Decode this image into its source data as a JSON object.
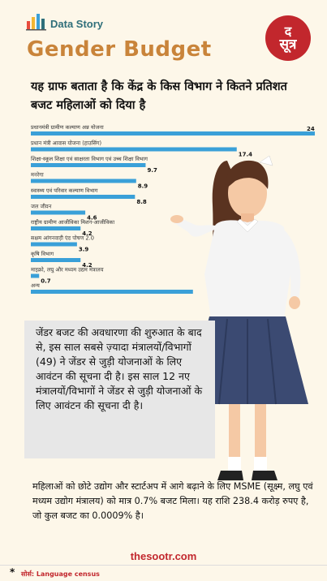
{
  "header": {
    "brand_label": "Data Story",
    "title": "Gender Budget",
    "logo_text_1": "द",
    "logo_text_2": "सूत्र"
  },
  "subtitle": "यह ग्राफ बताता है कि केंद्र के किस विभाग ने कितने प्रतिशत बजट महिलाओं को दिया है",
  "chart_data": {
    "type": "bar",
    "orientation": "horizontal",
    "categories": [
      "प्रधानमंत्री ग्रामीण कल्याण अन्न योजना",
      "प्रधान मंत्री आवास योजना (हाउसिंग)",
      "शिक्षा-स्कूल शिक्षा एवं साक्षरता विभाग एवं उच्च शिक्षा विभाग",
      "मनरेगा",
      "स्वास्थ्य एवं परिवार कल्याण विभाग",
      "जल जीवन",
      "राष्ट्रीय ग्रामीण आजीविका मिशन-आजीविका",
      "सक्षम आंगनवाड़ी एंड पोषण 2.0",
      "कृषि विभाग",
      "माइक्रो, लघु और मध्यम उद्यम मंत्रालय",
      "अन्य"
    ],
    "values": [
      24,
      17.4,
      9.7,
      8.9,
      8.8,
      4.6,
      4.2,
      3.9,
      4.2,
      0.7,
      13.7
    ],
    "value_labels": [
      "24",
      "17.4",
      "9.7",
      "8.9",
      "8.8",
      "4.6",
      "4.2",
      "3.9",
      "4.2",
      "0.7",
      "13.7"
    ],
    "xlim": [
      0,
      24
    ],
    "grid": false,
    "bar_color": "#3aa0d8"
  },
  "info_box": "जेंडर बजट की अवधारणा की शुरुआत के बाद से, इस साल सबसे ज़्यादा मंत्रालयों/विभागों (49) ने जेंडर से जुड़ी योजनाओं के लिए आवंटन की सूचना दी है। इस साल 12 नए मंत्रालयों/विभागों ने जेंडर से जुड़ी योजनाओं के लिए आवंटन की सूचना दी है।",
  "note": "महिलाओं को छोटे उद्योग और स्टार्टअप में आगे बढ़ाने के लिए MSME (सूक्ष्म, लघु एवं मध्यम उद्योग मंत्रालय) को मात्र 0.7% बजट मिला। यह राशि 238.4 करोड़ रुपए है, जो कुल बजट का 0.0009% है।",
  "website": "thesootr.com",
  "source": {
    "star": "*",
    "text": "सोर्स: Language census"
  },
  "colors": {
    "background": "#fdf7e9",
    "title": "#c9843a",
    "brand": "#2f6f7a",
    "logo": "#c2272d",
    "bar": "#3aa0d8"
  }
}
